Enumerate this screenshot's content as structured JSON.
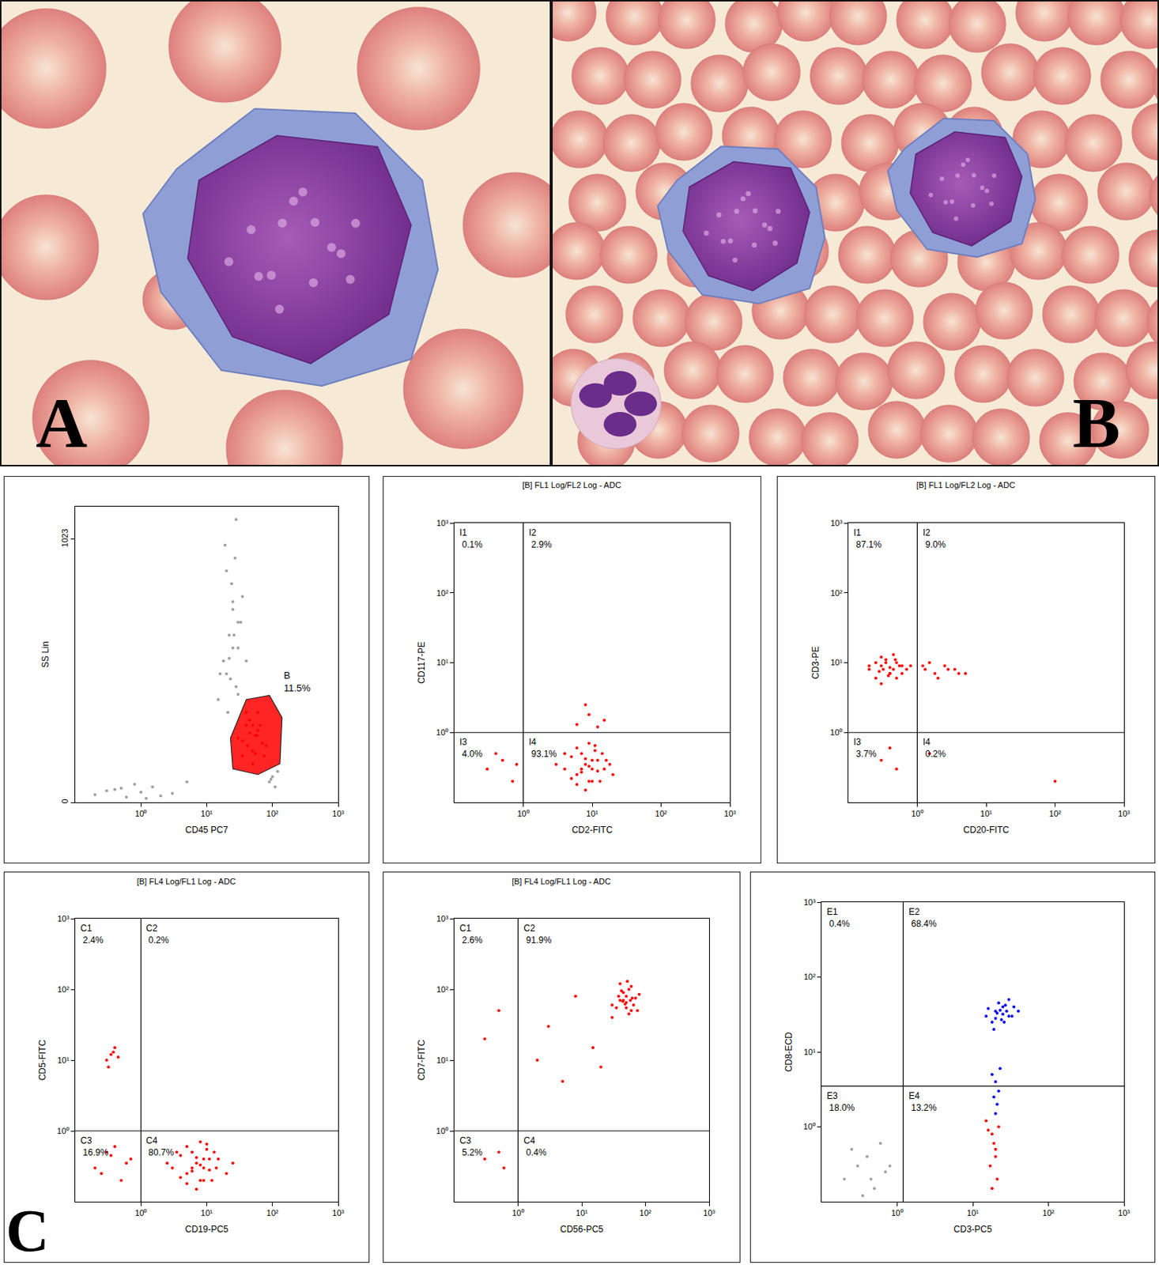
{
  "figure_labels": [
    "A",
    "B",
    "C"
  ],
  "chart_data": [
    {
      "type": "scatter",
      "x_label": "CD45 PC7",
      "y_label": "SS Lin",
      "log": "x",
      "grid": false,
      "xlim": [
        0.1,
        1000
      ],
      "ylim": [
        0,
        1150
      ],
      "xticks": [
        {
          "value": 1,
          "label": "10⁰"
        },
        {
          "value": 10,
          "label": "10¹"
        },
        {
          "value": 100,
          "label": "10²"
        },
        {
          "value": 1000,
          "label": "10³"
        }
      ],
      "yticks": [
        0,
        1023
      ],
      "series": [
        {
          "color": "#a0a0a0",
          "x": [
            15,
            20,
            25,
            30,
            18,
            22,
            28,
            35,
            20,
            25,
            30,
            16,
            24,
            40,
            27,
            21,
            33,
            19,
            26,
            23,
            28,
            22,
            30,
            25
          ],
          "y": [
            400,
            500,
            600,
            700,
            550,
            650,
            450,
            800,
            900,
            750,
            600,
            500,
            850,
            550,
            950,
            350,
            700,
            1000,
            650,
            480,
            1100,
            560,
            420,
            780
          ]
        },
        {
          "color": "#a0a0a0",
          "x": [
            0.2,
            0.4,
            0.6,
            1,
            1.5,
            2,
            0.8,
            0.3,
            3,
            5,
            1.2,
            0.5
          ],
          "y": [
            30,
            50,
            20,
            40,
            60,
            25,
            70,
            45,
            35,
            80,
            15,
            55
          ]
        },
        {
          "color": "#a0a0a0",
          "x": [
            90,
            100,
            110,
            120,
            95
          ],
          "y": [
            80,
            100,
            60,
            120,
            90
          ]
        },
        {
          "color": "#ff0000",
          "x": [
            30,
            40,
            50,
            60,
            35,
            45,
            55,
            70,
            40,
            50,
            65,
            80,
            45,
            55,
            35,
            60,
            50,
            75,
            42,
            58
          ],
          "y": [
            250,
            300,
            200,
            280,
            180,
            320,
            260,
            230,
            350,
            150,
            300,
            220,
            270,
            190,
            240,
            350,
            300,
            180,
            220,
            260
          ]
        }
      ],
      "gate": {
        "x": [
          23,
          40,
          90,
          140,
          130,
          60,
          25,
          23
        ],
        "y": [
          250,
          400,
          416,
          330,
          150,
          108,
          130,
          250
        ],
        "label": "B",
        "text": "11.5%",
        "color": "#ff0000"
      }
    },
    {
      "type": "scatter",
      "title": "[B] FL1 Log/FL2 Log - ADC",
      "x_label": "CD2-FITC",
      "y_label": "CD117-PE",
      "log": true,
      "grid": false,
      "xlim": [
        0.1,
        1000
      ],
      "ylim": [
        0.1,
        1000
      ],
      "xticks": [
        {
          "value": 1,
          "label": "10⁰"
        },
        {
          "value": 10,
          "label": "10¹"
        },
        {
          "value": 100,
          "label": "10²"
        },
        {
          "value": 1000,
          "label": "10³"
        }
      ],
      "yticks": [
        {
          "value": 1,
          "label": "10⁰"
        },
        {
          "value": 10,
          "label": "10¹"
        },
        {
          "value": 100,
          "label": "10²"
        },
        {
          "value": 1000,
          "label": "10³"
        }
      ],
      "series": [
        {
          "color": "#ff0000",
          "x": [
            4,
            6,
            8,
            10,
            12,
            7,
            9,
            5,
            15,
            20,
            3,
            6,
            11,
            8,
            13,
            9,
            7,
            10,
            5,
            14,
            18,
            6,
            8,
            12,
            9,
            11,
            4,
            16,
            7,
            10
          ],
          "y": [
            0.3,
            0.25,
            0.35,
            0.3,
            0.4,
            0.5,
            0.2,
            0.45,
            0.3,
            0.25,
            0.35,
            0.6,
            0.55,
            0.15,
            0.2,
            0.7,
            0.3,
            0.4,
            0.22,
            0.5,
            0.35,
            0.18,
            0.42,
            0.28,
            0.33,
            0.65,
            0.5,
            0.4,
            0.27,
            0.2
          ]
        },
        {
          "color": "#ff0000",
          "x": [
            6,
            9,
            12,
            8,
            15
          ],
          "y": [
            1.3,
            1.8,
            1.2,
            2.5,
            1.5
          ]
        },
        {
          "color": "#ff0000",
          "x": [
            0.3,
            0.5,
            0.7,
            0.4,
            0.8
          ],
          "y": [
            0.3,
            0.4,
            0.2,
            0.5,
            0.35
          ]
        }
      ],
      "quadrants": {
        "x": 1,
        "y": 1,
        "labels": [
          {
            "name": "I1",
            "text": "0.1%"
          },
          {
            "name": "I2",
            "text": "2.9%"
          },
          {
            "name": "I3",
            "text": "4.0%"
          },
          {
            "name": "I4",
            "text": "93.1%"
          }
        ]
      }
    },
    {
      "type": "scatter",
      "title": "[B] FL1 Log/FL2 Log - ADC",
      "x_label": "CD20-FITC",
      "y_label": "CD3-PE",
      "log": true,
      "grid": false,
      "xlim": [
        0.1,
        1000
      ],
      "ylim": [
        0.1,
        1000
      ],
      "xticks": [
        {
          "value": 1,
          "label": "10⁰"
        },
        {
          "value": 10,
          "label": "10¹"
        },
        {
          "value": 100,
          "label": "10²"
        },
        {
          "value": 1000,
          "label": "10³"
        }
      ],
      "yticks": [
        {
          "value": 1,
          "label": "10⁰"
        },
        {
          "value": 10,
          "label": "10¹"
        },
        {
          "value": 100,
          "label": "10²"
        },
        {
          "value": 1000,
          "label": "10³"
        }
      ],
      "series": [
        {
          "color": "#ff0000",
          "x": [
            0.2,
            0.3,
            0.4,
            0.5,
            0.25,
            0.35,
            0.45,
            0.6,
            0.3,
            0.4,
            0.2,
            0.5,
            0.7,
            0.35,
            0.28,
            0.45,
            0.55,
            0.3,
            0.4,
            0.25,
            0.6,
            0.38,
            0.48,
            0.32,
            0.8
          ],
          "y": [
            8,
            9,
            7,
            10,
            6,
            11,
            8,
            9,
            12,
            7,
            9,
            6,
            8,
            10,
            7.5,
            13,
            9,
            5,
            8.5,
            10,
            7,
            6.5,
            11,
            8,
            9
          ]
        },
        {
          "color": "#ff0000",
          "x": [
            1.3,
            1.8,
            2.5,
            3.5,
            1.5,
            2,
            4,
            1.2,
            2.8,
            5
          ],
          "y": [
            8,
            7,
            9,
            8,
            10,
            6,
            7,
            9,
            8,
            7
          ]
        },
        {
          "color": "#ff0000",
          "x": [
            0.3,
            0.5,
            0.4
          ],
          "y": [
            0.4,
            0.3,
            0.6
          ]
        },
        {
          "color": "#ff0000",
          "x": [
            1.5,
            100
          ],
          "y": [
            0.5,
            0.2
          ]
        }
      ],
      "quadrants": {
        "x": 1,
        "y": 1,
        "labels": [
          {
            "name": "I1",
            "text": "87.1%"
          },
          {
            "name": "I2",
            "text": "9.0%"
          },
          {
            "name": "I3",
            "text": "3.7%"
          },
          {
            "name": "I4",
            "text": "0.2%"
          }
        ]
      }
    },
    {
      "type": "scatter",
      "title": "[B] FL4 Log/FL1 Log - ADC",
      "x_label": "CD19-PC5",
      "y_label": "CD5-FITC",
      "log": true,
      "grid": false,
      "xlim": [
        0.1,
        1000
      ],
      "ylim": [
        0.1,
        1000
      ],
      "xticks": [
        {
          "value": 1,
          "label": "10⁰"
        },
        {
          "value": 10,
          "label": "10¹"
        },
        {
          "value": 100,
          "label": "10²"
        },
        {
          "value": 1000,
          "label": "10³"
        }
      ],
      "yticks": [
        {
          "value": 1,
          "label": "10⁰"
        },
        {
          "value": 10,
          "label": "10¹"
        },
        {
          "value": 100,
          "label": "10²"
        },
        {
          "value": 1000,
          "label": "10³"
        }
      ],
      "series": [
        {
          "color": "#ff0000",
          "x": [
            3,
            5,
            7,
            9,
            11,
            6,
            8,
            4,
            14,
            20,
            2.5,
            5,
            10,
            7,
            12,
            8,
            6,
            9,
            4,
            13,
            25,
            5,
            7,
            11,
            8,
            10,
            3.5,
            15,
            6,
            9
          ],
          "y": [
            0.3,
            0.25,
            0.35,
            0.3,
            0.4,
            0.5,
            0.2,
            0.45,
            0.3,
            0.25,
            0.35,
            0.6,
            0.55,
            0.15,
            0.2,
            0.7,
            0.3,
            0.4,
            0.22,
            0.5,
            0.35,
            0.18,
            0.42,
            0.28,
            0.33,
            0.65,
            0.5,
            0.4,
            0.27,
            0.2
          ]
        },
        {
          "color": "#ff0000",
          "x": [
            0.2,
            0.3,
            0.5,
            0.7,
            0.4,
            0.25,
            0.6,
            0.35
          ],
          "y": [
            0.3,
            0.5,
            0.2,
            0.4,
            0.6,
            0.25,
            0.35,
            0.45
          ]
        },
        {
          "color": "#ff0000",
          "x": [
            0.3,
            0.35,
            0.4,
            0.32,
            0.45,
            0.38
          ],
          "y": [
            10,
            12,
            15,
            8,
            11,
            13
          ]
        }
      ],
      "quadrants": {
        "x": 1,
        "y": 1,
        "labels": [
          {
            "name": "C1",
            "text": "2.4%"
          },
          {
            "name": "C2",
            "text": "0.2%"
          },
          {
            "name": "C3",
            "text": "16.9%"
          },
          {
            "name": "C4",
            "text": "80.7%"
          }
        ]
      }
    },
    {
      "type": "scatter",
      "title": "[B] FL4 Log/FL1 Log - ADC",
      "x_label": "CD56-PC5",
      "y_label": "CD7-FITC",
      "log": true,
      "grid": false,
      "xlim": [
        0.1,
        1000
      ],
      "ylim": [
        0.1,
        1000
      ],
      "xticks": [
        {
          "value": 1,
          "label": "10⁰"
        },
        {
          "value": 10,
          "label": "10¹"
        },
        {
          "value": 100,
          "label": "10²"
        },
        {
          "value": 1000,
          "label": "10³"
        }
      ],
      "yticks": [
        {
          "value": 1,
          "label": "10⁰"
        },
        {
          "value": 10,
          "label": "10¹"
        },
        {
          "value": 100,
          "label": "10²"
        },
        {
          "value": 1000,
          "label": "10³"
        }
      ],
      "series": [
        {
          "color": "#ff0000",
          "x": [
            30,
            40,
            50,
            60,
            45,
            55,
            35,
            70,
            50,
            40,
            65,
            55,
            45,
            80,
            30,
            60,
            50,
            42,
            58,
            48,
            38,
            75,
            52,
            62,
            44
          ],
          "y": [
            60,
            70,
            80,
            50,
            90,
            100,
            55,
            75,
            65,
            120,
            60,
            45,
            70,
            85,
            40,
            110,
            55,
            95,
            70,
            62,
            80,
            50,
            130,
            75,
            68
          ]
        },
        {
          "color": "#ff0000",
          "x": [
            3,
            0.5,
            2,
            8,
            15,
            0.3,
            5,
            20
          ],
          "y": [
            30,
            50,
            10,
            80,
            15,
            20,
            5,
            8
          ]
        },
        {
          "color": "#ff0000",
          "x": [
            0.3,
            0.5,
            0.6
          ],
          "y": [
            0.4,
            0.5,
            0.3
          ]
        }
      ],
      "quadrants": {
        "x": 1,
        "y": 1,
        "labels": [
          {
            "name": "C1",
            "text": "2.6%"
          },
          {
            "name": "C2",
            "text": "91.9%"
          },
          {
            "name": "C3",
            "text": "5.2%"
          },
          {
            "name": "C4",
            "text": "0.4%"
          }
        ]
      }
    },
    {
      "type": "scatter",
      "x_label": "CD3-PC5",
      "y_label": "CD8-ECD",
      "log": true,
      "grid": false,
      "xlim": [
        0.1,
        1000
      ],
      "ylim": [
        0.1,
        1000
      ],
      "xticks": [
        {
          "value": 1,
          "label": "10⁰"
        },
        {
          "value": 10,
          "label": "10¹"
        },
        {
          "value": 100,
          "label": "10²"
        },
        {
          "value": 1000,
          "label": "10³"
        }
      ],
      "yticks": [
        {
          "value": 1,
          "label": "10⁰"
        },
        {
          "value": 10,
          "label": "10¹"
        },
        {
          "value": 100,
          "label": "10²"
        },
        {
          "value": 1000,
          "label": "10³"
        }
      ],
      "series": [
        {
          "color": "#a0a0a0",
          "x": [
            0.2,
            0.3,
            0.5,
            0.7,
            0.4,
            0.25,
            0.6,
            0.35,
            0.8,
            0.45
          ],
          "y": [
            0.2,
            0.3,
            0.15,
            0.25,
            0.4,
            0.5,
            0.6,
            0.12,
            0.3,
            0.2
          ]
        },
        {
          "color": "#ff0000",
          "x": [
            15,
            18,
            20,
            22,
            17,
            19,
            21,
            16,
            20,
            18
          ],
          "y": [
            1.2,
            0.8,
            0.5,
            1,
            0.3,
            0.6,
            0.2,
            0.9,
            0.4,
            0.15
          ]
        },
        {
          "color": "#0000ff",
          "x": [
            18,
            20,
            22,
            19,
            21,
            20,
            23
          ],
          "y": [
            5,
            4,
            3,
            2.5,
            2,
            1.5,
            6
          ]
        },
        {
          "color": "#0000ff",
          "x": [
            15,
            20,
            25,
            30,
            18,
            22,
            28,
            35,
            20,
            25,
            30,
            16,
            24,
            40,
            27,
            21,
            33,
            19,
            26,
            23
          ],
          "y": [
            30,
            35,
            40,
            30,
            25,
            45,
            35,
            40,
            28,
            32,
            50,
            38,
            27,
            35,
            42,
            33,
            30,
            20,
            25,
            36
          ]
        }
      ],
      "quadrants": {
        "x": 1.2,
        "y": 3.5,
        "labels": [
          {
            "name": "E1",
            "text": "0.4%"
          },
          {
            "name": "E2",
            "text": "68.4%"
          },
          {
            "name": "E3",
            "text": "18.0%"
          },
          {
            "name": "E4",
            "text": "13.2%"
          }
        ]
      }
    }
  ]
}
